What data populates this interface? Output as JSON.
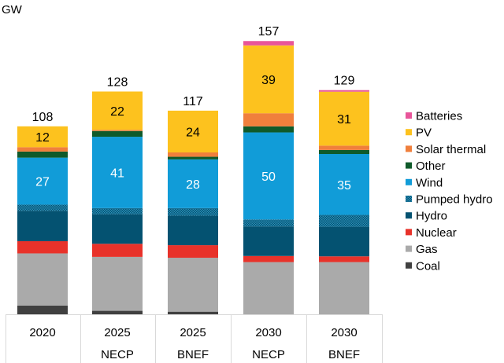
{
  "chart_data": {
    "type": "bar",
    "stacked": true,
    "ylabel": "GW",
    "ylim": [
      0,
      160
    ],
    "grid": false,
    "legend_position": "right",
    "categories": [
      {
        "line1": "2020",
        "line2": ""
      },
      {
        "line1": "2025",
        "line2": "NECP"
      },
      {
        "line1": "2025",
        "line2": "BNEF"
      },
      {
        "line1": "2030",
        "line2": "NECP"
      },
      {
        "line1": "2030",
        "line2": "BNEF"
      }
    ],
    "totals": [
      108,
      128,
      117,
      157,
      129
    ],
    "series": [
      {
        "name": "Coal",
        "color": "#404040",
        "values": [
          5,
          2,
          1.5,
          0,
          0
        ]
      },
      {
        "name": "Gas",
        "color": "#aaaaaa",
        "values": [
          30,
          31,
          31,
          30,
          30
        ]
      },
      {
        "name": "Nuclear",
        "color": "#e8322a",
        "values": [
          7,
          7.5,
          7.2,
          3.5,
          3.3
        ]
      },
      {
        "name": "Hydro",
        "color": "#045271",
        "values": [
          17.5,
          17,
          17,
          17,
          17
        ]
      },
      {
        "name": "Pumped hydro",
        "color": "#1c6f8c",
        "pattern": "checker",
        "values": [
          3.5,
          3.5,
          4.3,
          4,
          6.8
        ]
      },
      {
        "name": "Wind",
        "color": "#119cd8",
        "values": [
          27,
          41,
          28,
          50,
          35
        ],
        "labels": [
          "27",
          "41",
          "28",
          "50",
          "35"
        ]
      },
      {
        "name": "Other",
        "color": "#0f5a2a",
        "values": [
          3.5,
          3.3,
          1.5,
          3.5,
          2.3
        ]
      },
      {
        "name": "Solar thermal",
        "color": "#f07f3c",
        "values": [
          2.5,
          0.7,
          2.5,
          7.5,
          2.5
        ]
      },
      {
        "name": "PV",
        "color": "#fdc21e",
        "values": [
          12,
          22,
          24,
          39,
          31
        ],
        "labels": [
          "12",
          "22",
          "24",
          "39",
          "31"
        ]
      },
      {
        "name": "Batteries",
        "color": "#e8559a",
        "values": [
          0,
          0,
          0,
          2.5,
          0.9
        ]
      }
    ]
  }
}
